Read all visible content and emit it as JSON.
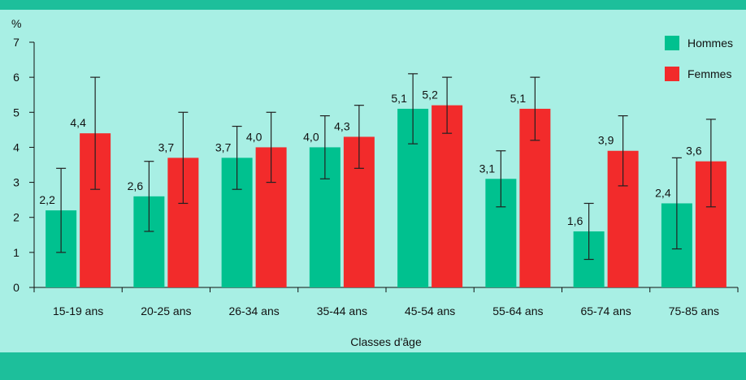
{
  "chart_data": {
    "type": "bar",
    "ylabel": "%",
    "xlabel": "Classes d'âge",
    "ylim": [
      0,
      7
    ],
    "yticks": [
      0,
      1,
      2,
      3,
      4,
      5,
      6,
      7
    ],
    "grid": false,
    "legend_position": "top-right",
    "categories": [
      "15-19 ans",
      "20-25 ans",
      "26-34 ans",
      "35-44 ans",
      "45-54 ans",
      "55-64 ans",
      "65-74 ans",
      "75-85 ans"
    ],
    "series": [
      {
        "name": "Hommes",
        "color": "#00c18f",
        "values": [
          2.2,
          2.6,
          3.7,
          4.0,
          5.1,
          3.1,
          1.6,
          2.4
        ],
        "labels": [
          "2,2",
          "2,6",
          "3,7",
          "4,0",
          "5,1",
          "3,1",
          "1,6",
          "2,4"
        ],
        "error_low": [
          1.0,
          1.6,
          2.8,
          3.1,
          4.1,
          2.3,
          0.8,
          1.1
        ],
        "error_high": [
          3.4,
          3.6,
          4.6,
          4.9,
          6.1,
          3.9,
          2.4,
          3.7
        ]
      },
      {
        "name": "Femmes",
        "color": "#f22b2b",
        "values": [
          4.4,
          3.7,
          4.0,
          4.3,
          5.2,
          5.1,
          3.9,
          3.6
        ],
        "labels": [
          "4,4",
          "3,7",
          "4,0",
          "4,3",
          "5,2",
          "5,1",
          "3,9",
          "3,6"
        ],
        "error_low": [
          2.8,
          2.4,
          3.0,
          3.4,
          4.4,
          4.2,
          2.9,
          2.3
        ],
        "error_high": [
          6.0,
          5.0,
          5.0,
          5.2,
          6.0,
          6.0,
          4.9,
          4.8
        ]
      }
    ]
  }
}
